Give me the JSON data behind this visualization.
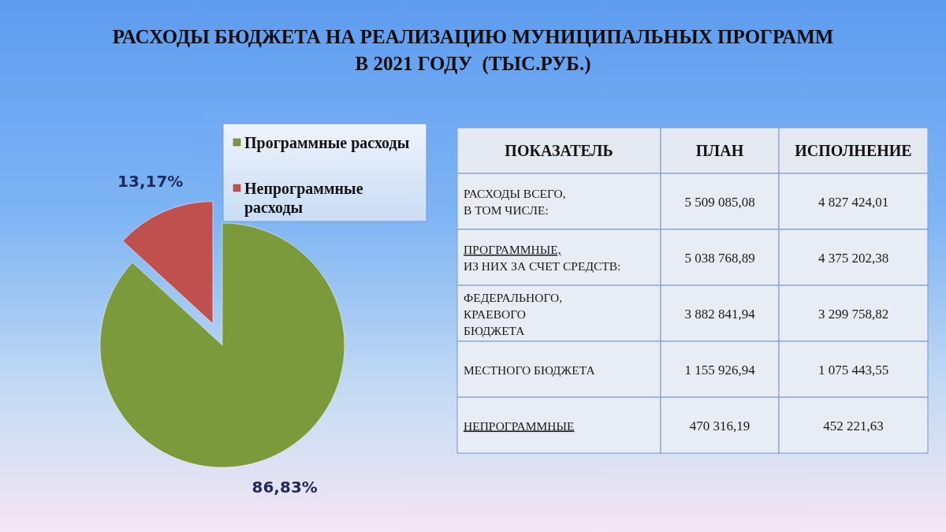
{
  "chart_data": [
    {
      "type": "pie",
      "title": "РАСХОДЫ БЮДЖЕТА НА РЕАЛИЗАЦИЮ МУНИЦИПАЛЬНЫХ ПРОГРАММ\nВ 2021 ГОДУ  (ТЫС.РУБ.)",
      "categories": [
        "Программные расходы",
        "Непрограммные расходы"
      ],
      "values": [
        86.83,
        13.17
      ],
      "colors": [
        "#7a9a3c",
        "#c0504d"
      ],
      "value_labels": [
        "86,83%",
        "13,17%"
      ],
      "legend": "top right"
    },
    {
      "type": "other",
      "categories": [
        "ПОКАЗАТЕЛЬ",
        "ПЛАН",
        "ИСПОЛНЕНИЕ"
      ],
      "cell_labels": [
        [
          "РАСХОДЫ ВСЕГО,\nВ ТОМ ЧИСЛЕ:",
          "5 509 085,08",
          "4 827 424,01"
        ],
        [
          "ПРОГРАММНЫЕ,\nИЗ НИХ ЗА СЧЕТ СРЕДСТВ:",
          "5 038 768,89",
          "4 375 202,38"
        ],
        [
          "ФЕДЕРАЛЬНОГО,\nКРАЕВОГО\nБЮДЖЕТА",
          "3 882 841,94",
          "3 299 758,82"
        ],
        [
          "МЕСТНОГО БЮДЖЕТА",
          "1 155 926,94",
          "1 075 443,55"
        ],
        [
          "НЕПРОГРАММНЫЕ",
          "470 316,19",
          "452 221,63"
        ]
      ]
    }
  ]
}
